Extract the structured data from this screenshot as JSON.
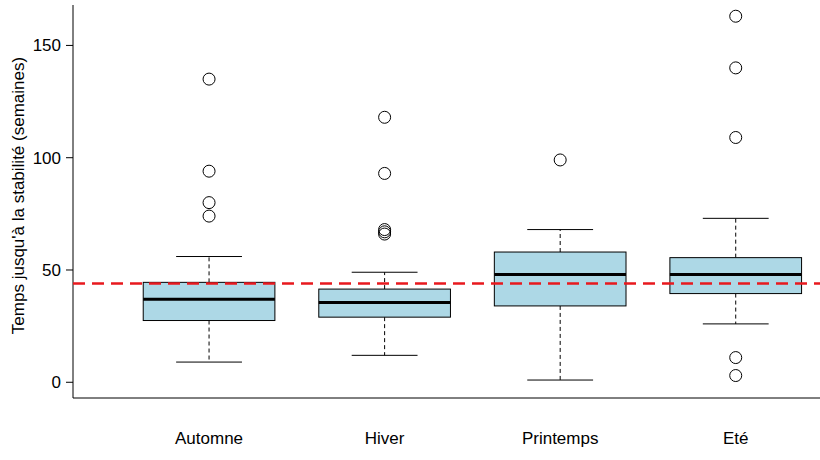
{
  "chart_data": {
    "type": "box",
    "y_label": "Temps jusqu'à la stabilité (semaines)",
    "categories": [
      "Automne",
      "Hiver",
      "Printemps",
      "Eté"
    ],
    "color": "#add8e6",
    "boxes": [
      {
        "whisker_low": 9,
        "q1": 27.5,
        "median": 37,
        "q3": 44.5,
        "whisker_high": 56,
        "outliers": [
          135,
          94,
          80,
          74
        ]
      },
      {
        "whisker_low": 12,
        "q1": 29,
        "median": 35.5,
        "q3": 41.5,
        "whisker_high": 49,
        "outliers": [
          118,
          93,
          68,
          67,
          66
        ]
      },
      {
        "whisker_low": 1,
        "q1": 34,
        "median": 48,
        "q3": 58,
        "whisker_high": 68,
        "outliers": [
          99
        ]
      },
      {
        "whisker_low": 26,
        "q1": 39.5,
        "median": 48,
        "q3": 55.5,
        "whisker_high": 73,
        "outliers": [
          163,
          140,
          109,
          11,
          3
        ]
      }
    ],
    "reference_line": {
      "value": 44,
      "color": "#e8191e",
      "line_style": "dashed"
    },
    "ylim": [
      -7,
      168
    ],
    "yticks": [
      0,
      50,
      100,
      150
    ],
    "grid": false
  }
}
